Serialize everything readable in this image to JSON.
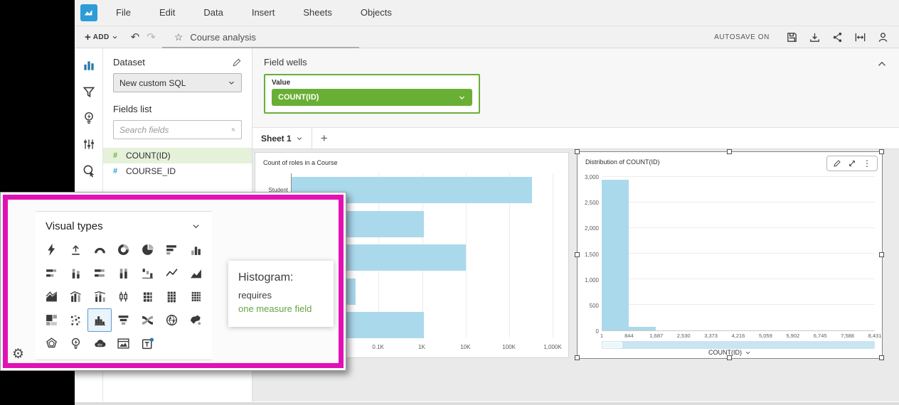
{
  "menubar": {
    "items": [
      "File",
      "Edit",
      "Data",
      "Insert",
      "Sheets",
      "Objects"
    ]
  },
  "toolbar": {
    "add_label": "ADD",
    "title": "Course analysis",
    "autosave_label": "AUTOSAVE ON",
    "right_icons": [
      "save",
      "export",
      "share",
      "fit-width",
      "user"
    ]
  },
  "rail": [
    {
      "name": "visualize",
      "active": true
    },
    {
      "name": "filter",
      "active": false
    },
    {
      "name": "insights",
      "active": false
    },
    {
      "name": "parameters",
      "active": false
    },
    {
      "name": "actions",
      "active": false
    },
    {
      "name": "themes",
      "active": false
    }
  ],
  "dataset_panel": {
    "title": "Dataset",
    "dataset_name": "New custom SQL",
    "fields_list_label": "Fields list",
    "search_placeholder": "Search fields",
    "fields": [
      {
        "name": "COUNT(ID)",
        "type": "measure",
        "selected": true
      },
      {
        "name": "COURSE_ID",
        "type": "dimension",
        "selected": false
      }
    ]
  },
  "field_wells": {
    "title": "Field wells",
    "well_label": "Value",
    "well_value": "COUNT(ID)"
  },
  "sheet_bar": {
    "tab": "Sheet 1"
  },
  "visual_types": {
    "title": "Visual types",
    "selected": "histogram",
    "rows": [
      [
        "auto-graph",
        "kpi",
        "gauge",
        "donut-chart",
        "pie-chart",
        "horizontal-bar-chart",
        "vertical-bar-chart"
      ],
      [
        "horizontal-stacked-bar-chart",
        "vertical-stacked-bar-chart",
        "horizontal-100-stacked-bar-chart",
        "vertical-100-stacked-bar-chart",
        "waterfall-chart",
        "line-chart",
        "area-line-chart"
      ],
      [
        "stacked-area-line-chart",
        "clustered-bar-combo-chart",
        "stacked-bar-combo-chart",
        "box-plot",
        "heat-map",
        "pivot-table",
        "table"
      ],
      [
        "tree-map",
        "scatter-plot",
        "histogram",
        "funnel-chart",
        "sankey-diagram",
        "points-on-map",
        "filled-map"
      ],
      [
        "radar-chart",
        "insights",
        "word-cloud",
        "custom-visual-content",
        "text-box"
      ]
    ],
    "tooltip": {
      "title": "Histogram:",
      "requirement": "requires",
      "requirement_highlight": "one measure field"
    }
  },
  "chart_data": [
    {
      "type": "bar",
      "orientation": "horizontal",
      "title": "Count of roles in a Course",
      "categories": [
        "Student",
        "",
        "",
        "",
        ""
      ],
      "values": [
        340000,
        1100,
        10000,
        30,
        1100
      ],
      "x_scale": "log",
      "x_ticks": [
        "0.1K",
        "1K",
        "10K",
        "100K",
        "1,000K"
      ],
      "x_tick_values": [
        100,
        1000,
        10000,
        100000,
        1000000
      ],
      "xlim": [
        1,
        1300000
      ]
    },
    {
      "type": "histogram",
      "title": "Distribution of COUNT(ID)",
      "xlabel": "COUNT(ID)",
      "x_ticks": [
        "1",
        "844",
        "1,687",
        "2,530",
        "3,373",
        "4,216",
        "5,059",
        "5,902",
        "6,745",
        "7,588",
        "8,431"
      ],
      "bin_edges": [
        1,
        844,
        1687,
        2530,
        3373,
        4216,
        5059,
        5902,
        6745,
        7588,
        8431
      ],
      "values": [
        2950,
        70,
        0,
        0,
        0,
        0,
        0,
        0,
        0,
        0
      ],
      "y_ticks": [
        0,
        500,
        1000,
        1500,
        2000,
        2500,
        3000
      ],
      "y_tick_labels": [
        "0",
        "500",
        "1,000",
        "1,500",
        "2,000",
        "2,500",
        "3,000"
      ],
      "ylim": [
        0,
        3000
      ]
    }
  ],
  "colors": {
    "logo_blue": "#2d9cd8",
    "accent_green": "#6aaf35",
    "bar_blue": "#abd9ec",
    "selection_pink": "#e211b5",
    "tooltip_green": "#67a342",
    "rail_active_blue": "#2779a7"
  }
}
